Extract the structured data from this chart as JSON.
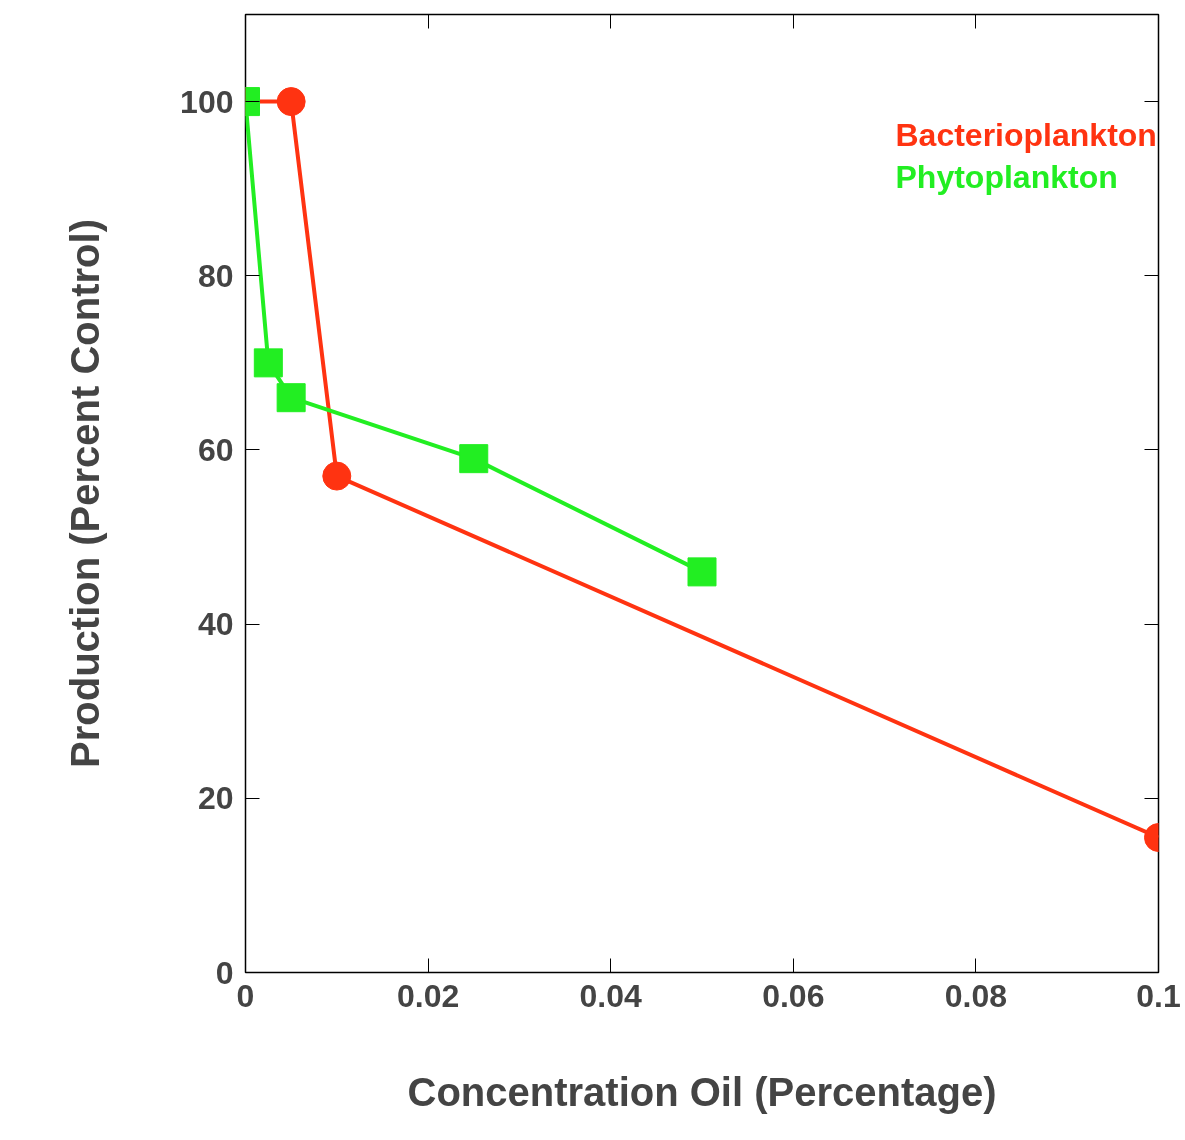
{
  "chart_data": {
    "type": "line",
    "xlabel": "Concentration Oil (Percentage)",
    "ylabel": "Production (Percent Control)",
    "xlim": [
      0,
      0.1
    ],
    "ylim": [
      0,
      110
    ],
    "xticks": [
      0,
      0.02,
      0.04,
      0.06,
      0.08,
      0.1
    ],
    "yticks": [
      0,
      20,
      40,
      60,
      80,
      100
    ],
    "grid": false,
    "legend": "top right",
    "series": [
      {
        "name": "Bacterioplankton",
        "color": "#ff3311",
        "marker": "circle",
        "x": [
          0,
          0.005,
          0.01,
          0.1
        ],
        "values": [
          100,
          100,
          57,
          15.5
        ]
      },
      {
        "name": "Phytoplankton",
        "color": "#22ee22",
        "marker": "square",
        "x": [
          0,
          0.0025,
          0.005,
          0.025,
          0.05
        ],
        "values": [
          100,
          70,
          66,
          59,
          46
        ]
      }
    ]
  }
}
